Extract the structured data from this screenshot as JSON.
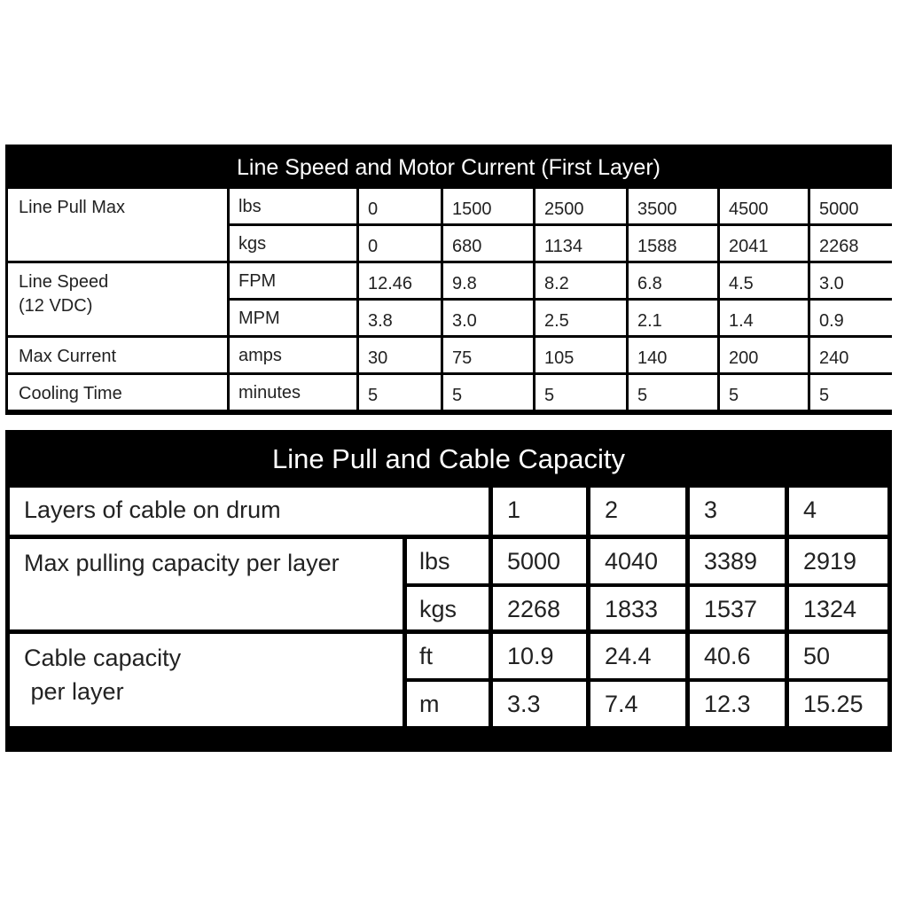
{
  "table1": {
    "title": "Line Speed and Motor Current (First Layer)",
    "groups": [
      {
        "label": "Line Pull Max",
        "rows": [
          {
            "unit": "lbs",
            "values": [
              "0",
              "1500",
              "2500",
              "3500",
              "4500",
              "5000"
            ]
          },
          {
            "unit": "kgs",
            "values": [
              "0",
              "680",
              "1134",
              "1588",
              "2041",
              "2268"
            ]
          }
        ]
      },
      {
        "label": "Line Speed\n(12 VDC)",
        "rows": [
          {
            "unit": "FPM",
            "values": [
              "12.46",
              "9.8",
              "8.2",
              "6.8",
              "4.5",
              "3.0"
            ]
          },
          {
            "unit": "MPM",
            "values": [
              "3.8",
              "3.0",
              "2.5",
              "2.1",
              "1.4",
              "0.9"
            ]
          }
        ]
      },
      {
        "label": "Max Current",
        "rows": [
          {
            "unit": "amps",
            "values": [
              "30",
              "75",
              "105",
              "140",
              "200",
              "240"
            ]
          }
        ]
      },
      {
        "label": "Cooling Time",
        "rows": [
          {
            "unit": "minutes",
            "values": [
              "5",
              "5",
              "5",
              "5",
              "5",
              "5"
            ]
          }
        ]
      }
    ]
  },
  "table2": {
    "title": "Line Pull and Cable Capacity",
    "header_label": "Layers of cable on drum",
    "layers": [
      "1",
      "2",
      "3",
      "4"
    ],
    "groups": [
      {
        "label": "Max pulling capacity per layer",
        "rows": [
          {
            "unit": "lbs",
            "values": [
              "5000",
              "4040",
              "3389",
              "2919"
            ]
          },
          {
            "unit": "kgs",
            "values": [
              "2268",
              "1833",
              "1537",
              "1324"
            ]
          }
        ]
      },
      {
        "label": "Cable capacity\n per layer",
        "rows": [
          {
            "unit": "ft",
            "values": [
              "10.9",
              "24.4",
              "40.6",
              "50"
            ]
          },
          {
            "unit": "m",
            "values": [
              "3.3",
              "7.4",
              "12.3",
              "15.25"
            ]
          }
        ]
      }
    ]
  }
}
